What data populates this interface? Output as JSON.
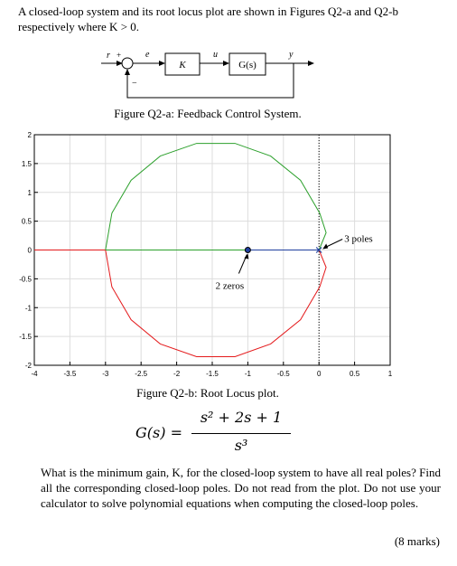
{
  "intro": "A closed-loop system and its root locus plot are shown in Figures Q2-a and Q2-b respectively where K > 0.",
  "figure_a": {
    "r": "r",
    "plus": "+",
    "e": "e",
    "K": "K",
    "u": "u",
    "G": "G(s)",
    "y": "y",
    "minus": "−",
    "caption": "Figure Q2-a: Feedback Control System."
  },
  "figure_b": {
    "xlim": [
      -4,
      1
    ],
    "ylim": [
      -2,
      2
    ],
    "xticks": [
      -4,
      -3.5,
      -3,
      -2.5,
      -2,
      -1.5,
      -1,
      -0.5,
      0,
      0.5,
      1
    ],
    "yticks": [
      -2,
      -1.5,
      -1,
      -0.5,
      0,
      0.5,
      1,
      1.5,
      2
    ],
    "grid": true,
    "series": [
      {
        "color": "#2ca02c",
        "x": [
          0,
          0.1,
          0.01,
          -0.26,
          -0.68,
          -1.18,
          -1.72,
          -2.23,
          -2.64,
          -2.91,
          -3
        ],
        "y": [
          0,
          0.3,
          0.64,
          1.21,
          1.63,
          1.85,
          1.85,
          1.63,
          1.21,
          0.64,
          0
        ]
      },
      {
        "color": "#e41a1c",
        "x": [
          0,
          0.1,
          0.01,
          -0.26,
          -0.68,
          -1.18,
          -1.72,
          -2.23,
          -2.64,
          -2.91,
          -3
        ],
        "y": [
          0,
          -0.3,
          -0.64,
          -1.21,
          -1.63,
          -1.85,
          -1.85,
          -1.63,
          -1.21,
          -0.64,
          0
        ]
      },
      {
        "color": "#e41a1c",
        "x": [
          -4,
          -3
        ],
        "y": [
          0,
          0
        ]
      },
      {
        "color": "#2ca02c",
        "x": [
          -3,
          -1
        ],
        "y": [
          0,
          0
        ]
      },
      {
        "color": "#1f3f9f",
        "x": [
          -1,
          0
        ],
        "y": [
          0,
          0
        ]
      }
    ],
    "poles": {
      "label": "3 poles",
      "x": 0,
      "y": 0
    },
    "zeros": {
      "label": "2 zeros",
      "x": -1,
      "y": 0
    },
    "caption": "Figure Q2-b: Root Locus plot."
  },
  "equation": {
    "lhs": "G(s) =",
    "numerator": "s² + 2s + 1",
    "denominator": "s³"
  },
  "question": "What is the minimum gain, K, for the closed-loop system to have all real poles? Find all the corresponding closed-loop poles. Do not read from the plot. Do not use your calculator to solve polynomial equations when computing the closed-loop poles.",
  "marks": "(8 marks)"
}
